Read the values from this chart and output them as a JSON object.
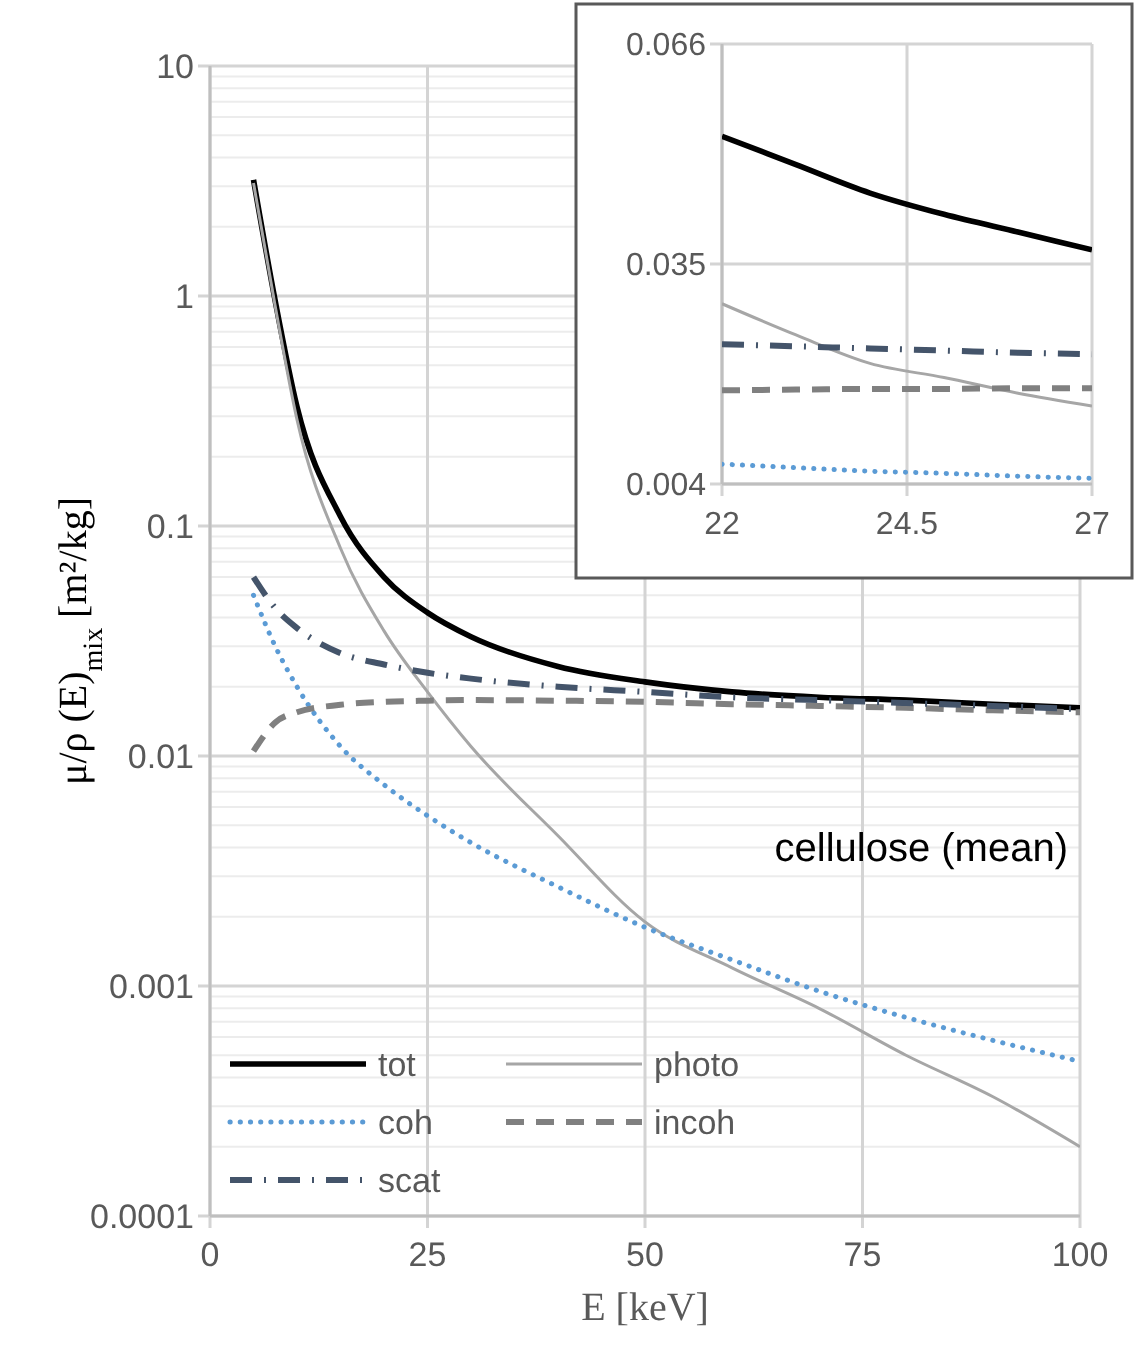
{
  "chart_data": [
    {
      "type": "line",
      "xlabel": "E [keV]",
      "ylabel": "μ/ρ (E)$_{mix}$ [m²/kg]",
      "log": "y",
      "grid": true,
      "legend": "bottom left",
      "xlim": [
        0,
        100
      ],
      "xticks": [
        0,
        25,
        50,
        75,
        100
      ],
      "ylim": [
        0.0001,
        10
      ],
      "yticks": [
        0.0001,
        0.001,
        0.01,
        0.1,
        1,
        10
      ],
      "annotations": [
        "cellulose (mean)"
      ],
      "x": [
        5,
        7.5,
        10,
        15,
        20,
        25,
        30,
        40,
        50,
        60,
        70,
        80,
        90,
        100
      ],
      "series": [
        {
          "name": "tot",
          "color": "#000000",
          "line_style": "solid",
          "values": [
            3.2,
            0.95,
            0.33,
            0.11,
            0.06,
            0.042,
            0.033,
            0.0245,
            0.021,
            0.019,
            0.018,
            0.0175,
            0.0168,
            0.0162
          ]
        },
        {
          "name": "photo",
          "color": "#a6a6a6",
          "line_style": "solid",
          "values": [
            3.1,
            0.9,
            0.29,
            0.08,
            0.035,
            0.019,
            0.011,
            0.0045,
            0.0019,
            0.0012,
            0.0008,
            0.0005,
            0.00033,
            0.0002
          ]
        },
        {
          "name": "coh",
          "color": "#5b9bd5",
          "line_style": "dotted",
          "values": [
            0.05,
            0.03,
            0.02,
            0.011,
            0.0075,
            0.0055,
            0.0042,
            0.0027,
            0.0018,
            0.0013,
            0.00095,
            0.00073,
            0.00058,
            0.00047
          ]
        },
        {
          "name": "incoh",
          "color": "#808080",
          "line_style": "dashed",
          "values": [
            0.0105,
            0.014,
            0.0155,
            0.0167,
            0.0172,
            0.0174,
            0.0175,
            0.0174,
            0.0172,
            0.0168,
            0.0165,
            0.0162,
            0.0158,
            0.0155
          ]
        },
        {
          "name": "scat",
          "color": "#44546a",
          "line_style": "dashdot",
          "values": [
            0.06,
            0.044,
            0.036,
            0.028,
            0.025,
            0.023,
            0.0217,
            0.02,
            0.019,
            0.018,
            0.0175,
            0.017,
            0.0165,
            0.016
          ]
        }
      ]
    },
    {
      "type": "line",
      "grid": true,
      "legend": false,
      "xlim": [
        22,
        27
      ],
      "xticks": [
        22,
        24.5,
        27
      ],
      "ylim": [
        0.004,
        0.066
      ],
      "yticks": [
        0.004,
        0.035,
        0.066
      ],
      "x": [
        22,
        23,
        24,
        25,
        26,
        27
      ],
      "series": [
        {
          "color": "#000000",
          "line_style": "solid",
          "values": [
            0.053,
            0.049,
            0.045,
            0.042,
            0.0395,
            0.037
          ]
        },
        {
          "color": "#a6a6a6",
          "line_style": "solid",
          "values": [
            0.0294,
            0.025,
            0.021,
            0.019,
            0.0168,
            0.015
          ]
        },
        {
          "color": "#5b9bd5",
          "line_style": "dotted",
          "values": [
            0.0068,
            0.0063,
            0.0058,
            0.0055,
            0.0051,
            0.0048
          ]
        },
        {
          "color": "#808080",
          "line_style": "dashed",
          "values": [
            0.0172,
            0.0173,
            0.0174,
            0.0174,
            0.0175,
            0.0175
          ]
        },
        {
          "color": "#44546a",
          "line_style": "dashdot",
          "values": [
            0.0237,
            0.0234,
            0.0231,
            0.0228,
            0.0225,
            0.0223
          ]
        }
      ]
    }
  ]
}
